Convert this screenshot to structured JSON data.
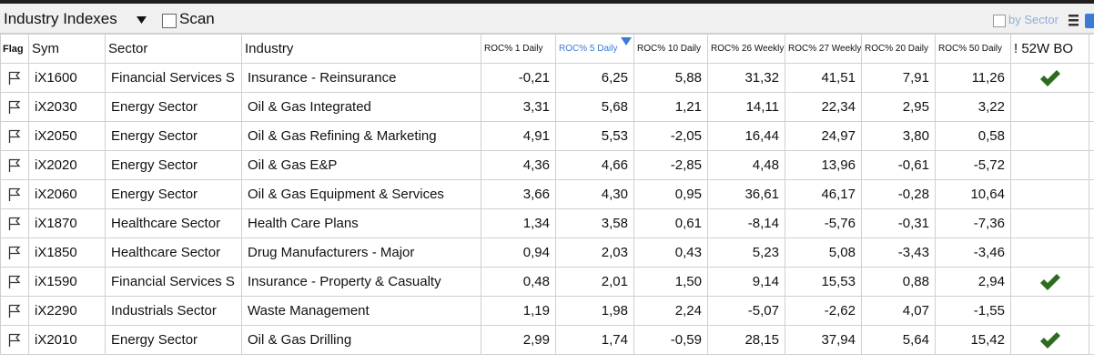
{
  "toolbar": {
    "title": "Industry Indexes",
    "scan": "Scan",
    "by_sector": "by Sector"
  },
  "table": {
    "sorted_column": 5,
    "columns": [
      "Flag",
      "Sym",
      "Sector",
      "Industry",
      "ROC% 1 Daily",
      "ROC% 5 Daily",
      "ROC% 10 Daily",
      "ROC% 26 Weekly",
      "ROC% 27 Weekly",
      "ROC% 20 Daily",
      "ROC% 50 Daily",
      "! 52W BO"
    ],
    "rows": [
      {
        "cells": [
          "iX1600",
          "Financial Services S",
          "Insurance - Reinsurance",
          "-0,21",
          "6,25",
          "5,88",
          "31,32",
          "41,51",
          "7,91",
          "11,26"
        ],
        "breakout": true
      },
      {
        "cells": [
          "iX2030",
          "Energy Sector",
          "Oil & Gas Integrated",
          "3,31",
          "5,68",
          "1,21",
          "14,11",
          "22,34",
          "2,95",
          "3,22"
        ],
        "breakout": false
      },
      {
        "cells": [
          "iX2050",
          "Energy Sector",
          "Oil & Gas Refining & Marketing",
          "4,91",
          "5,53",
          "-2,05",
          "16,44",
          "24,97",
          "3,80",
          "0,58"
        ],
        "breakout": false
      },
      {
        "cells": [
          "iX2020",
          "Energy Sector",
          "Oil & Gas E&P",
          "4,36",
          "4,66",
          "-2,85",
          "4,48",
          "13,96",
          "-0,61",
          "-5,72"
        ],
        "breakout": false
      },
      {
        "cells": [
          "iX2060",
          "Energy Sector",
          "Oil & Gas Equipment & Services",
          "3,66",
          "4,30",
          "0,95",
          "36,61",
          "46,17",
          "-0,28",
          "10,64"
        ],
        "breakout": false
      },
      {
        "cells": [
          "iX1870",
          "Healthcare Sector",
          "Health Care Plans",
          "1,34",
          "3,58",
          "0,61",
          "-8,14",
          "-5,76",
          "-0,31",
          "-7,36"
        ],
        "breakout": false
      },
      {
        "cells": [
          "iX1850",
          "Healthcare Sector",
          "Drug Manufacturers - Major",
          "0,94",
          "2,03",
          "0,43",
          "5,23",
          "5,08",
          "-3,43",
          "-3,46"
        ],
        "breakout": false
      },
      {
        "cells": [
          "iX1590",
          "Financial Services S",
          "Insurance - Property & Casualty",
          "0,48",
          "2,01",
          "1,50",
          "9,14",
          "15,53",
          "0,88",
          "2,94"
        ],
        "breakout": true
      },
      {
        "cells": [
          "iX2290",
          "Industrials Sector",
          "Waste Management",
          "1,19",
          "1,98",
          "2,24",
          "-5,07",
          "-2,62",
          "4,07",
          "-1,55"
        ],
        "breakout": false
      },
      {
        "cells": [
          "iX2010",
          "Energy Sector",
          "Oil & Gas Drilling",
          "2,99",
          "1,74",
          "-0,59",
          "28,15",
          "37,94",
          "5,64",
          "15,42"
        ],
        "breakout": true
      }
    ]
  }
}
